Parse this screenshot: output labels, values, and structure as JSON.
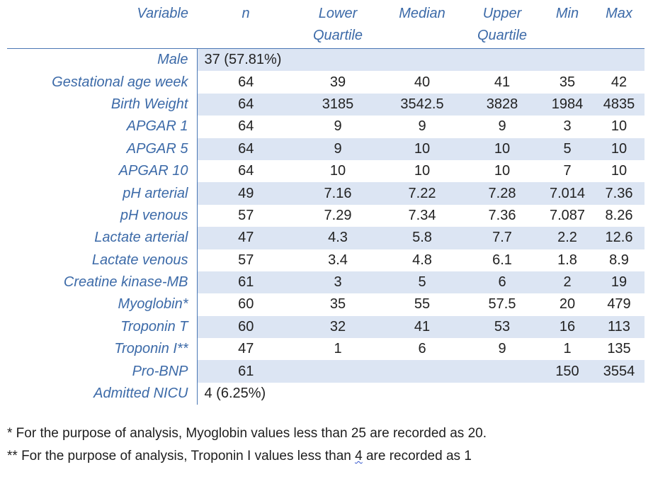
{
  "table": {
    "headers": {
      "variable": "Variable",
      "n": "n",
      "lower_quartile": [
        "Lower",
        "Quartile"
      ],
      "median": "Median",
      "upper_quartile": [
        "Upper",
        "Quartile"
      ],
      "min": "Min",
      "max": "Max"
    },
    "rows": [
      {
        "variable": "Male",
        "span": "37 (57.81%)"
      },
      {
        "variable": "Gestational age week",
        "n": "64",
        "lower_quartile": "39",
        "median": "40",
        "upper_quartile": "41",
        "min": "35",
        "max": "42"
      },
      {
        "variable": "Birth Weight",
        "n": "64",
        "lower_quartile": "3185",
        "median": "3542.5",
        "upper_quartile": "3828",
        "min": "1984",
        "max": "4835"
      },
      {
        "variable": "APGAR 1",
        "n": "64",
        "lower_quartile": "9",
        "median": "9",
        "upper_quartile": "9",
        "min": "3",
        "max": "10"
      },
      {
        "variable": "APGAR 5",
        "n": "64",
        "lower_quartile": "9",
        "median": "10",
        "upper_quartile": "10",
        "min": "5",
        "max": "10"
      },
      {
        "variable": "APGAR 10",
        "n": "64",
        "lower_quartile": "10",
        "median": "10",
        "upper_quartile": "10",
        "min": "7",
        "max": "10"
      },
      {
        "variable": "pH arterial",
        "n": "49",
        "lower_quartile": "7.16",
        "median": "7.22",
        "upper_quartile": "7.28",
        "min": "7.014",
        "max": "7.36"
      },
      {
        "variable": "pH venous",
        "n": "57",
        "lower_quartile": "7.29",
        "median": "7.34",
        "upper_quartile": "7.36",
        "min": "7.087",
        "max": "8.26"
      },
      {
        "variable": "Lactate arterial",
        "n": "47",
        "lower_quartile": "4.3",
        "median": "5.8",
        "upper_quartile": "7.7",
        "min": "2.2",
        "max": "12.6"
      },
      {
        "variable": "Lactate venous",
        "n": "57",
        "lower_quartile": "3.4",
        "median": "4.8",
        "upper_quartile": "6.1",
        "min": "1.8",
        "max": "8.9"
      },
      {
        "variable": "Creatine kinase-MB",
        "n": "61",
        "lower_quartile": "3",
        "median": "5",
        "upper_quartile": "6",
        "min": "2",
        "max": "19"
      },
      {
        "variable": "Myoglobin*",
        "n": "60",
        "lower_quartile": "35",
        "median": "55",
        "upper_quartile": "57.5",
        "min": "20",
        "max": "479"
      },
      {
        "variable": "Troponin T",
        "n": "60",
        "lower_quartile": "32",
        "median": "41",
        "upper_quartile": "53",
        "min": "16",
        "max": "113"
      },
      {
        "variable": "Troponin I**",
        "n": "47",
        "lower_quartile": "1",
        "median": "6",
        "upper_quartile": "9",
        "min": "1",
        "max": "135"
      },
      {
        "variable": "Pro-BNP",
        "n": "61",
        "lower_quartile": "",
        "median": "",
        "upper_quartile": "",
        "min": "150",
        "max": "3554"
      },
      {
        "variable": "Admitted NICU",
        "span": "4 (6.25%)"
      }
    ]
  },
  "footnotes": {
    "note1": "* For the purpose of analysis, Myoglobin values less than 25 are recorded as 20.",
    "note2_before": "** For the purpose of analysis, Troponin I values less than ",
    "note2_wavy": "4",
    "note2_after": " are recorded as 1"
  },
  "colors": {
    "label_blue": "#3c6aa8",
    "row_shade": "#dce5f3",
    "rule_blue": "#4a77b4"
  }
}
